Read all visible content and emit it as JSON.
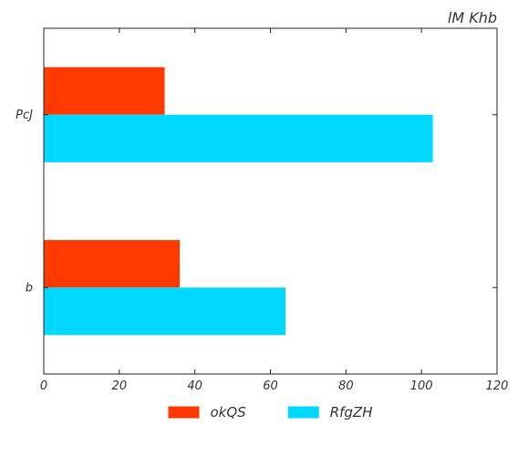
{
  "chart_data": {
    "type": "bar",
    "orientation": "horizontal",
    "title": "lM Khb",
    "xlabel": "",
    "ylabel": "",
    "categories": [
      "b",
      "PcJ"
    ],
    "series": [
      {
        "name": "okQS",
        "values": [
          36,
          32
        ],
        "color": "#ff3a00"
      },
      {
        "name": "RfgZH",
        "values": [
          64,
          103
        ],
        "color": "#00d8ff"
      }
    ],
    "xlim": [
      0,
      120
    ],
    "xticks": [
      "0",
      "20",
      "40",
      "60",
      "80",
      "100",
      "120"
    ],
    "grid": false,
    "legend_position": "bottom-center"
  }
}
